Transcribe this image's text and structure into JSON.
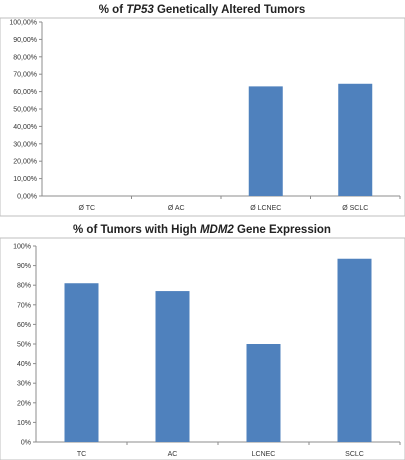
{
  "chart_data": [
    {
      "type": "bar",
      "title_pre": "% of ",
      "title_em": "TP53",
      "title_post": " Genetically Altered Tumors",
      "categories": [
        "Ø TC",
        "Ø AC",
        "Ø LCNEC",
        "Ø SCLC"
      ],
      "values": [
        0,
        0,
        63,
        64.5
      ],
      "ylim": [
        0,
        100
      ],
      "yticks": [
        0,
        10,
        20,
        30,
        40,
        50,
        60,
        70,
        80,
        90,
        100
      ],
      "ytick_labels": [
        "0,00%",
        "10,00%",
        "20,00%",
        "30,00%",
        "40,00%",
        "50,00%",
        "60,00%",
        "70,00%",
        "80,00%",
        "90,00%",
        "100,00%"
      ],
      "grid": false,
      "bar_color": "#4f81bd"
    },
    {
      "type": "bar",
      "title_pre": "% of Tumors with High ",
      "title_em": "MDM2",
      "title_post": " Gene Expression",
      "categories": [
        "TC",
        "AC",
        "LCNEC",
        "SCLC"
      ],
      "values": [
        81,
        77,
        50,
        93.5
      ],
      "ylim": [
        0,
        100
      ],
      "yticks": [
        0,
        10,
        20,
        30,
        40,
        50,
        60,
        70,
        80,
        90,
        100
      ],
      "ytick_labels": [
        "0%",
        "10%",
        "20%",
        "30%",
        "40%",
        "50%",
        "60%",
        "70%",
        "80%",
        "90%",
        "100%"
      ],
      "grid": false,
      "bar_color": "#4f81bd"
    }
  ]
}
